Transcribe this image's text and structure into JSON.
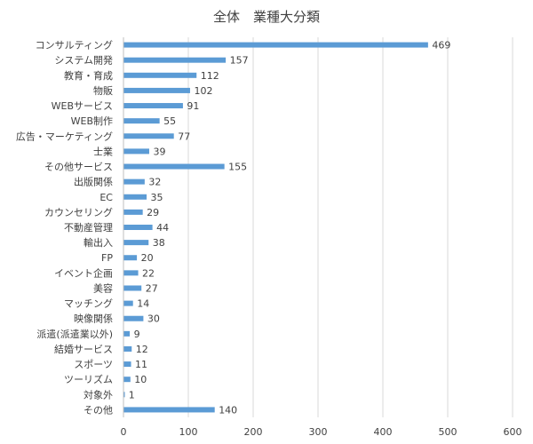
{
  "chart_data": {
    "type": "bar",
    "orientation": "horizontal",
    "title": "全体　業種大分類",
    "categories": [
      "コンサルティング",
      "システム開発",
      "教育・育成",
      "物販",
      "WEBサービス",
      "WEB制作",
      "広告・マーケティング",
      "士業",
      "その他サービス",
      "出版関係",
      "EC",
      "カウンセリング",
      "不動産管理",
      "輸出入",
      "FP",
      "イベント企画",
      "美容",
      "マッチング",
      "映像関係",
      "派遣(派遣業以外)",
      "結婚サービス",
      "スポーツ",
      "ツーリズム",
      "対象外",
      "その他"
    ],
    "values": [
      469,
      157,
      112,
      102,
      91,
      55,
      77,
      39,
      155,
      32,
      35,
      29,
      44,
      38,
      20,
      22,
      27,
      14,
      30,
      9,
      12,
      11,
      10,
      1,
      140
    ],
    "xlim": [
      0,
      600
    ],
    "xticks": [
      0,
      100,
      200,
      300,
      400,
      500,
      600
    ],
    "grid": true,
    "data_labels": true,
    "bar_color": "#5B9BD5",
    "xlabel": "",
    "ylabel": ""
  }
}
